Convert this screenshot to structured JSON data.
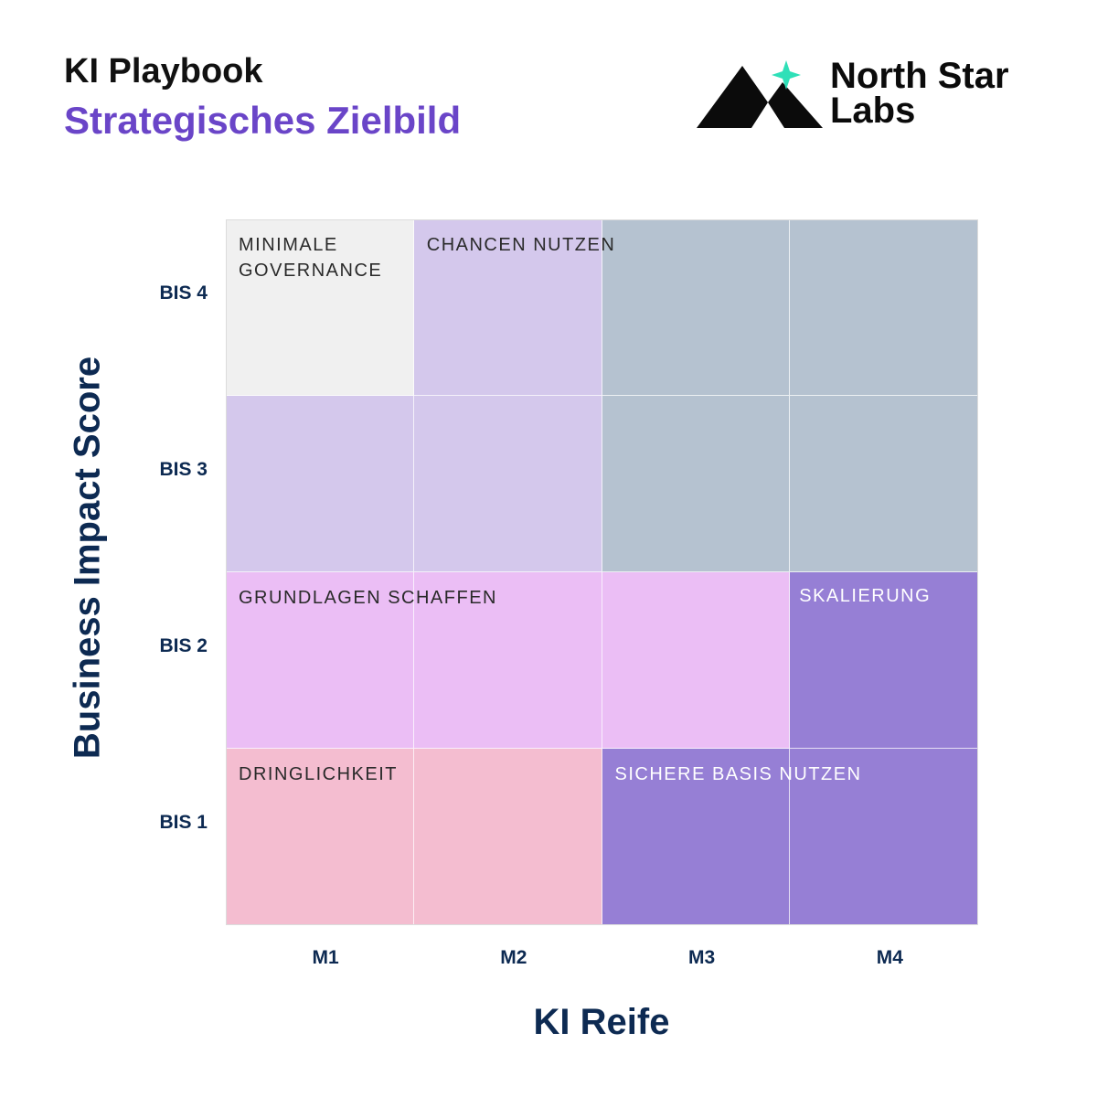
{
  "header": {
    "title": "KI Playbook",
    "subtitle": "Strategisches Zielbild",
    "subtitle_color": "#6a45c8"
  },
  "logo": {
    "line1": "North Star",
    "line2": "Labs",
    "star_color": "#2fe0b8",
    "icon": "mountain-star-logo"
  },
  "chart_data": {
    "type": "heatmap",
    "title": "",
    "xlabel": "KI Reife",
    "ylabel": "Business Impact Score",
    "x_categories": [
      "M1",
      "M2",
      "M3",
      "M4"
    ],
    "y_categories": [
      "BIS 1",
      "BIS 2",
      "BIS 3",
      "BIS 4"
    ],
    "zones": [
      {
        "label": "DRINGLICHKEIT",
        "color": "#f4bdd0",
        "text_color": "#2a2a2a"
      },
      {
        "label": "SKALIERUNG",
        "color": "#967fd5",
        "text_color": "#ffffff"
      },
      {
        "label": "GRUNDLAGEN SCHAFFEN",
        "color": "#ebbef5",
        "text_color": "#2a2a2a"
      },
      {
        "label": "CHANCEN NUTZEN",
        "color": "#d4c8ec",
        "text_color": "#2a2a2a"
      },
      {
        "label": "SICHERE BASIS NUTZEN",
        "color": "#b5c2d0",
        "text_color": "#ffffff"
      },
      {
        "label": "MINIMALE\nGOVERNANCE",
        "color": "#f0f0f0",
        "text_color": "#2a2a2a"
      }
    ],
    "grid": [
      [
        5,
        3,
        4,
        4
      ],
      [
        3,
        3,
        4,
        4
      ],
      [
        2,
        2,
        2,
        1
      ],
      [
        0,
        0,
        1,
        1
      ]
    ]
  }
}
